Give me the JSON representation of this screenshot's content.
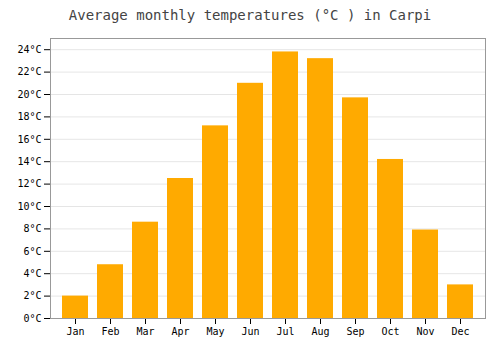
{
  "chart_data": {
    "type": "bar",
    "title": "Average monthly temperatures (°C ) in Carpi",
    "categories": [
      "Jan",
      "Feb",
      "Mar",
      "Apr",
      "May",
      "Jun",
      "Jul",
      "Aug",
      "Sep",
      "Oct",
      "Nov",
      "Dec"
    ],
    "values": [
      2.0,
      4.8,
      8.6,
      12.5,
      17.2,
      21.0,
      23.8,
      23.2,
      19.7,
      14.2,
      7.9,
      3.0
    ],
    "color": "#FFAA00",
    "ylim": [
      0,
      25
    ],
    "yticks": [
      {
        "value": 0,
        "label": "0°C"
      },
      {
        "value": 2,
        "label": "2°C"
      },
      {
        "value": 4,
        "label": "4°C"
      },
      {
        "value": 6,
        "label": "6°C"
      },
      {
        "value": 8,
        "label": "8°C"
      },
      {
        "value": 10,
        "label": "10°C"
      },
      {
        "value": 12,
        "label": "12°C"
      },
      {
        "value": 14,
        "label": "14°C"
      },
      {
        "value": 16,
        "label": "16°C"
      },
      {
        "value": 18,
        "label": "18°C"
      },
      {
        "value": 20,
        "label": "20°C"
      },
      {
        "value": 22,
        "label": "22°C"
      },
      {
        "value": 24,
        "label": "24°C"
      }
    ],
    "grid": true
  }
}
